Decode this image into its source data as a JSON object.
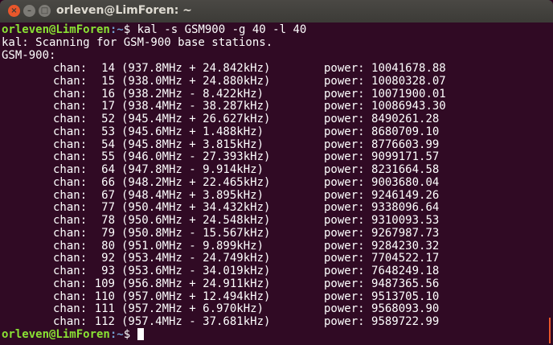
{
  "window": {
    "title": "orleven@LimForen: ~",
    "close_icon": "×",
    "min_icon": "–",
    "max_icon": "□"
  },
  "prompt": {
    "user_host": "orleven@LimForen",
    "path": ":~",
    "dollar": "$ "
  },
  "command": "kal -s GSM900 -g 40 -l 40",
  "output": {
    "scanning": "kal: Scanning for GSM-900 base stations.",
    "band": "GSM-900:"
  },
  "chan_label": "chan:",
  "power_label": "power:",
  "rows": [
    {
      "chan": "14",
      "freq": "(937.8MHz + 24.842kHz)",
      "power": "10041678.88"
    },
    {
      "chan": "15",
      "freq": "(938.0MHz + 24.880kHz)",
      "power": "10080328.07"
    },
    {
      "chan": "16",
      "freq": "(938.2MHz - 8.422kHz)",
      "power": "10071900.01"
    },
    {
      "chan": "17",
      "freq": "(938.4MHz - 38.287kHz)",
      "power": "10086943.30"
    },
    {
      "chan": "52",
      "freq": "(945.4MHz + 26.627kHz)",
      "power": "8490261.28"
    },
    {
      "chan": "53",
      "freq": "(945.6MHz + 1.488kHz)",
      "power": "8680709.10"
    },
    {
      "chan": "54",
      "freq": "(945.8MHz + 3.815kHz)",
      "power": "8776603.99"
    },
    {
      "chan": "55",
      "freq": "(946.0MHz - 27.393kHz)",
      "power": "9099171.57"
    },
    {
      "chan": "64",
      "freq": "(947.8MHz - 9.914kHz)",
      "power": "8231664.58"
    },
    {
      "chan": "66",
      "freq": "(948.2MHz + 22.465kHz)",
      "power": "9003680.04"
    },
    {
      "chan": "67",
      "freq": "(948.4MHz + 3.895kHz)",
      "power": "9246149.26"
    },
    {
      "chan": "77",
      "freq": "(950.4MHz + 34.432kHz)",
      "power": "9338096.64"
    },
    {
      "chan": "78",
      "freq": "(950.6MHz + 24.548kHz)",
      "power": "9310093.53"
    },
    {
      "chan": "79",
      "freq": "(950.8MHz - 15.567kHz)",
      "power": "9267987.73"
    },
    {
      "chan": "80",
      "freq": "(951.0MHz - 9.899kHz)",
      "power": "9284230.32"
    },
    {
      "chan": "92",
      "freq": "(953.4MHz - 24.749kHz)",
      "power": "7704522.17"
    },
    {
      "chan": "93",
      "freq": "(953.6MHz - 34.019kHz)",
      "power": "7648249.18"
    },
    {
      "chan": "109",
      "freq": "(956.8MHz + 24.911kHz)",
      "power": "9487365.56"
    },
    {
      "chan": "110",
      "freq": "(957.0MHz + 12.494kHz)",
      "power": "9513705.10"
    },
    {
      "chan": "111",
      "freq": "(957.2MHz + 6.970kHz)",
      "power": "9568093.90"
    },
    {
      "chan": "112",
      "freq": "(957.4MHz - 37.681kHz)",
      "power": "9589722.99"
    }
  ],
  "colors": {
    "background": "#300a24",
    "prompt_user": "#8ae234",
    "prompt_path": "#729fcf",
    "scrollbar": "#e9572b"
  }
}
